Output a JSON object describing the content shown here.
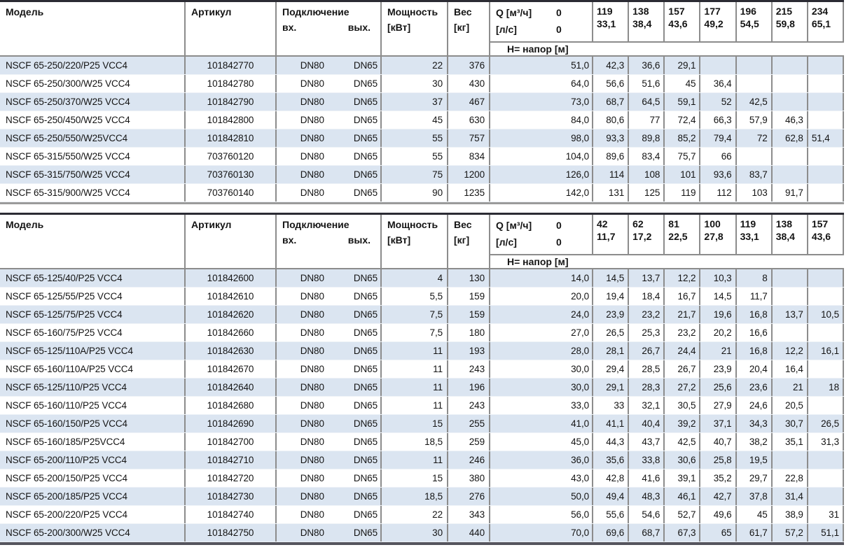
{
  "labels": {
    "model": "Модель",
    "article": "Артикул",
    "connection": "Подключение",
    "conn_in": "вх.",
    "conn_out": "вых.",
    "power_line1": "Мощность",
    "power_line2": "[кВт]",
    "weight_line1": "Вес",
    "weight_line2": "[кг]",
    "q_line1": "Q [м³/ч]",
    "q_zero": "0",
    "ls_label": "[л/с]",
    "ls_zero": "0",
    "napor": "Н= напор [м]"
  },
  "colors": {
    "stripe": "#dbe5f1",
    "grid": "#8c8c8c",
    "heavy_border": "#2b2b33"
  },
  "tables": [
    {
      "q_cols": [
        {
          "m3h": "119",
          "ls": "33,1"
        },
        {
          "m3h": "138",
          "ls": "38,4"
        },
        {
          "m3h": "157",
          "ls": "43,6"
        },
        {
          "m3h": "177",
          "ls": "49,2"
        },
        {
          "m3h": "196",
          "ls": "54,5"
        },
        {
          "m3h": "215",
          "ls": "59,8"
        },
        {
          "m3h": "234",
          "ls": "65,1"
        }
      ],
      "rows": [
        {
          "model": "NSCF 65-250/220/P25 VCC4",
          "article": "101842770",
          "dn_in": "DN80",
          "dn_out": "DN65",
          "power": "22",
          "weight": "376",
          "h0": "51,0",
          "heads": [
            "42,3",
            "36,6",
            "29,1",
            "",
            "",
            "",
            ""
          ]
        },
        {
          "model": "NSCF 65-250/300/W25 VCC4",
          "article": "101842780",
          "dn_in": "DN80",
          "dn_out": "DN65",
          "power": "30",
          "weight": "430",
          "h0": "64,0",
          "heads": [
            "56,6",
            "51,6",
            "45",
            "36,4",
            "",
            "",
            ""
          ]
        },
        {
          "model": "NSCF 65-250/370/W25 VCC4",
          "article": "101842790",
          "dn_in": "DN80",
          "dn_out": "DN65",
          "power": "37",
          "weight": "467",
          "h0": "73,0",
          "heads": [
            "68,7",
            "64,5",
            "59,1",
            "52",
            "42,5",
            "",
            ""
          ]
        },
        {
          "model": "NSCF 65-250/450/W25 VCC4",
          "article": "101842800",
          "dn_in": "DN80",
          "dn_out": "DN65",
          "power": "45",
          "weight": "630",
          "h0": "84,0",
          "heads": [
            "80,6",
            "77",
            "72,4",
            "66,3",
            "57,9",
            "46,3",
            ""
          ]
        },
        {
          "model": "NSCF 65-250/550/W25VCC4",
          "article": "101842810",
          "dn_in": "DN80",
          "dn_out": "DN65",
          "power": "55",
          "weight": "757",
          "h0": "98,0",
          "heads": [
            "93,3",
            "89,8",
            "85,2",
            "79,4",
            "72",
            "62,8",
            {
              "v": "51,4",
              "align": "left"
            }
          ]
        },
        {
          "model": "NSCF 65-315/550/W25 VCC4",
          "article": "703760120",
          "dn_in": "DN80",
          "dn_out": "DN65",
          "power": "55",
          "weight": "834",
          "h0": "104,0",
          "heads": [
            "89,6",
            "83,4",
            "75,7",
            "66",
            "",
            "",
            ""
          ]
        },
        {
          "model": "NSCF 65-315/750/W25 VCC4",
          "article": "703760130",
          "dn_in": "DN80",
          "dn_out": "DN65",
          "power": "75",
          "weight": "1200",
          "h0": "126,0",
          "heads": [
            "114",
            "108",
            "101",
            "93,6",
            "83,7",
            "",
            ""
          ]
        },
        {
          "model": "NSCF 65-315/900/W25 VCC4",
          "article": "703760140",
          "dn_in": "DN80",
          "dn_out": "DN65",
          "power": "90",
          "weight": "1235",
          "h0": "142,0",
          "heads": [
            "131",
            "125",
            "119",
            "112",
            "103",
            "91,7",
            ""
          ]
        }
      ]
    },
    {
      "q_cols": [
        {
          "m3h": "42",
          "ls": "11,7"
        },
        {
          "m3h": "62",
          "ls": "17,2"
        },
        {
          "m3h": "81",
          "ls": "22,5"
        },
        {
          "m3h": "100",
          "ls": "27,8"
        },
        {
          "m3h": "119",
          "ls": "33,1"
        },
        {
          "m3h": "138",
          "ls": "38,4"
        },
        {
          "m3h": "157",
          "ls": "43,6"
        }
      ],
      "rows": [
        {
          "model": "NSCF 65-125/40/P25 VCC4",
          "article": "101842600",
          "dn_in": "DN80",
          "dn_out": "DN65",
          "power": "4",
          "weight": "130",
          "h0": "14,0",
          "heads": [
            "14,5",
            "13,7",
            "12,2",
            "10,3",
            "8",
            "",
            ""
          ]
        },
        {
          "model": "NSCF 65-125/55/P25 VCC4",
          "article": "101842610",
          "dn_in": "DN80",
          "dn_out": "DN65",
          "power": "5,5",
          "weight": "159",
          "h0": "20,0",
          "heads": [
            "19,4",
            "18,4",
            "16,7",
            "14,5",
            "11,7",
            "",
            ""
          ]
        },
        {
          "model": "NSCF 65-125/75/P25 VCC4",
          "article": "101842620",
          "dn_in": "DN80",
          "dn_out": "DN65",
          "power": "7,5",
          "weight": "159",
          "h0": "24,0",
          "heads": [
            "23,9",
            "23,2",
            "21,7",
            "19,6",
            "16,8",
            "13,7",
            "10,5"
          ]
        },
        {
          "model": "NSCF 65-160/75/P25 VCC4",
          "article": "101842660",
          "dn_in": "DN80",
          "dn_out": "DN65",
          "power": "7,5",
          "weight": "180",
          "h0": "27,0",
          "heads": [
            "26,5",
            "25,3",
            "23,2",
            "20,2",
            "16,6",
            "",
            ""
          ]
        },
        {
          "model": "NSCF 65-125/110A/P25 VCC4",
          "article": "101842630",
          "dn_in": "DN80",
          "dn_out": "DN65",
          "power": "11",
          "weight": "193",
          "h0": "28,0",
          "heads": [
            "28,1",
            "26,7",
            "24,4",
            "21",
            "16,8",
            "12,2",
            "16,1"
          ]
        },
        {
          "model": "NSCF 65-160/110A/P25 VCC4",
          "article": "101842670",
          "dn_in": "DN80",
          "dn_out": "DN65",
          "power": "11",
          "weight": "243",
          "h0": "30,0",
          "heads": [
            "29,4",
            "28,5",
            "26,7",
            "23,9",
            "20,4",
            "16,4",
            ""
          ]
        },
        {
          "model": "NSCF 65-125/110/P25 VCC4",
          "article": "101842640",
          "dn_in": "DN80",
          "dn_out": "DN65",
          "power": "11",
          "weight": "196",
          "h0": "30,0",
          "heads": [
            "29,1",
            "28,3",
            "27,2",
            "25,6",
            "23,6",
            "21",
            "18"
          ]
        },
        {
          "model": "NSCF 65-160/110/P25 VCC4",
          "article": "101842680",
          "dn_in": "DN80",
          "dn_out": "DN65",
          "power": "11",
          "weight": "243",
          "h0": "33,0",
          "heads": [
            "33",
            "32,1",
            "30,5",
            "27,9",
            "24,6",
            "20,5",
            ""
          ]
        },
        {
          "model": "NSCF 65-160/150/P25 VCC4",
          "article": "101842690",
          "dn_in": "DN80",
          "dn_out": "DN65",
          "power": "15",
          "weight": "255",
          "h0": "41,0",
          "heads": [
            "41,1",
            "40,4",
            "39,2",
            "37,1",
            "34,3",
            "30,7",
            "26,5"
          ]
        },
        {
          "model": "NSCF 65-160/185/P25VCC4",
          "article": "101842700",
          "dn_in": "DN80",
          "dn_out": "DN65",
          "power": "18,5",
          "weight": "259",
          "h0": "45,0",
          "heads": [
            "44,3",
            "43,7",
            "42,5",
            "40,7",
            "38,2",
            "35,1",
            "31,3"
          ]
        },
        {
          "model": "NSCF 65-200/110/P25 VCC4",
          "article": "101842710",
          "dn_in": "DN80",
          "dn_out": "DN65",
          "power": "11",
          "weight": "246",
          "h0": "36,0",
          "heads": [
            "35,6",
            "33,8",
            "30,6",
            "25,8",
            "19,5",
            "",
            ""
          ]
        },
        {
          "model": "NSCF 65-200/150/P25 VCC4",
          "article": "101842720",
          "dn_in": "DN80",
          "dn_out": "DN65",
          "power": "15",
          "weight": "380",
          "h0": "43,0",
          "heads": [
            "42,8",
            "41,6",
            "39,1",
            "35,2",
            "29,7",
            "22,8",
            ""
          ]
        },
        {
          "model": "NSCF 65-200/185/P25 VCC4",
          "article": "101842730",
          "dn_in": "DN80",
          "dn_out": "DN65",
          "power": "18,5",
          "weight": "276",
          "h0": "50,0",
          "heads": [
            "49,4",
            "48,3",
            "46,1",
            "42,7",
            "37,8",
            "31,4",
            ""
          ]
        },
        {
          "model": "NSCF 65-200/220/P25 VCC4",
          "article": "101842740",
          "dn_in": "DN80",
          "dn_out": "DN65",
          "power": "22",
          "weight": "343",
          "h0": "56,0",
          "heads": [
            "55,6",
            "54,6",
            "52,7",
            "49,6",
            "45",
            "38,9",
            "31"
          ]
        },
        {
          "model": "NSCF 65-200/300/W25 VCC4",
          "article": "101842750",
          "dn_in": "DN80",
          "dn_out": "DN65",
          "power": "30",
          "weight": "440",
          "h0": "70,0",
          "heads": [
            "69,6",
            "68,7",
            "67,3",
            "65",
            "61,7",
            "57,2",
            "51,1"
          ]
        }
      ]
    }
  ]
}
